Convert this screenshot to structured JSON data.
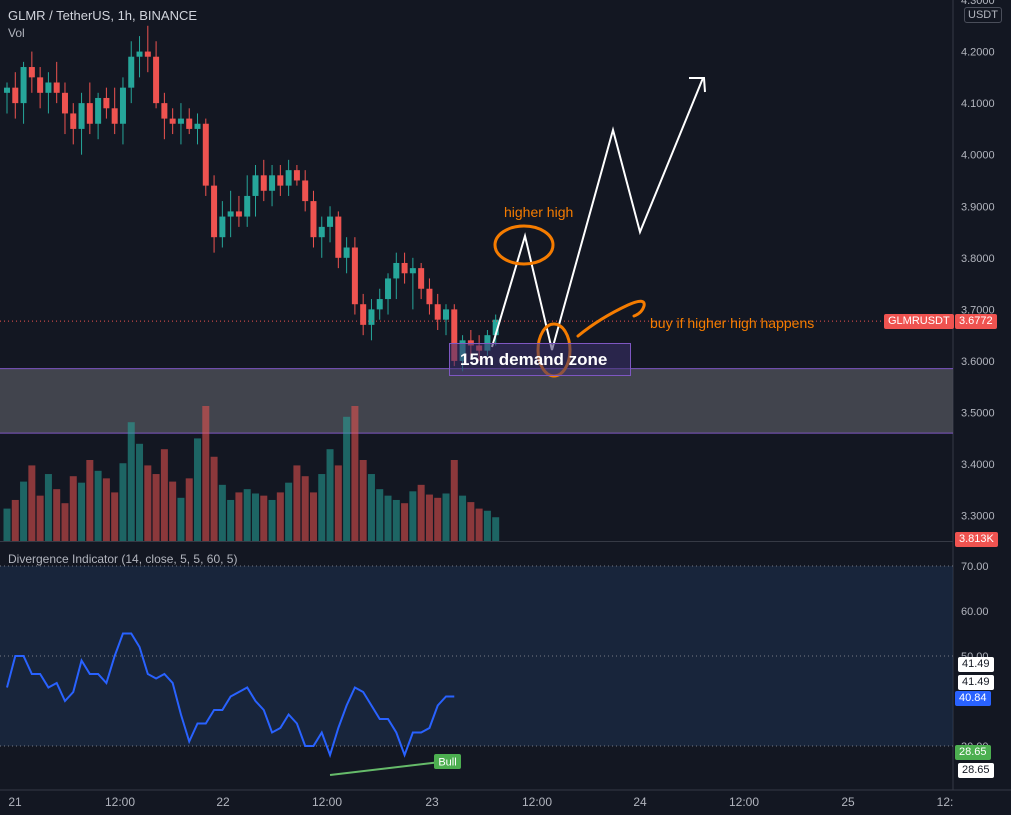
{
  "header": {
    "title": "GLMR / TetherUS, 1h, BINANCE",
    "volume_label": "Vol",
    "indicator_title": "Divergence Indicator (14, close, 5, 5, 60, 5)",
    "currency_unit": "USDT"
  },
  "annotations": {
    "higher_high": "higher high",
    "buy_note": "buy if higher high happens",
    "demand_zone": "15m demand zone",
    "bull_label": "Bull"
  },
  "price_tags": {
    "symbol": "GLMRUSDT",
    "last_price": "3.6772",
    "volume_value": "3.813K"
  },
  "indicator_tags": {
    "upper_a": "41.49",
    "upper_b": "41.49",
    "current": "40.84",
    "lower_a": "28.65",
    "lower_b": "28.65"
  },
  "colors": {
    "background": "#131722",
    "bull_candle": "#26a69a",
    "bear_candle": "#ef5350",
    "indicator_line": "#2962ff",
    "annotation_orange": "#f57c00",
    "zone_fill": "#4a4c55",
    "zone_border": "#7e57c2",
    "divergence_line": "#66bb6a"
  },
  "chart_data": [
    {
      "type": "candlestick",
      "title": "GLMR / TetherUS, 1h, BINANCE",
      "x_ticks": [
        "21",
        "12:00",
        "22",
        "12:00",
        "23",
        "12:00",
        "24",
        "12:00",
        "25",
        "12:"
      ],
      "y_ticks": [
        4.3,
        4.2,
        4.1,
        4.0,
        3.9,
        3.8,
        3.7,
        3.6,
        3.5,
        3.4,
        3.3
      ],
      "ylim": [
        3.25,
        4.3
      ],
      "grid": false,
      "last_price": 3.6772,
      "demand_zone": [
        3.46,
        3.585
      ],
      "candles": [
        [
          4.12,
          4.14,
          4.08,
          4.13
        ],
        [
          4.13,
          4.16,
          4.07,
          4.1
        ],
        [
          4.1,
          4.18,
          4.06,
          4.17
        ],
        [
          4.17,
          4.2,
          4.12,
          4.15
        ],
        [
          4.15,
          4.17,
          4.09,
          4.12
        ],
        [
          4.12,
          4.16,
          4.08,
          4.14
        ],
        [
          4.14,
          4.18,
          4.1,
          4.12
        ],
        [
          4.12,
          4.14,
          4.04,
          4.08
        ],
        [
          4.08,
          4.1,
          4.02,
          4.05
        ],
        [
          4.05,
          4.12,
          4.0,
          4.1
        ],
        [
          4.1,
          4.14,
          4.04,
          4.06
        ],
        [
          4.06,
          4.12,
          4.03,
          4.11
        ],
        [
          4.11,
          4.13,
          4.07,
          4.09
        ],
        [
          4.09,
          4.13,
          4.04,
          4.06
        ],
        [
          4.06,
          4.15,
          4.02,
          4.13
        ],
        [
          4.13,
          4.22,
          4.1,
          4.19
        ],
        [
          4.19,
          4.23,
          4.15,
          4.2
        ],
        [
          4.2,
          4.25,
          4.16,
          4.19
        ],
        [
          4.19,
          4.22,
          4.09,
          4.1
        ],
        [
          4.1,
          4.12,
          4.03,
          4.07
        ],
        [
          4.07,
          4.09,
          4.04,
          4.06
        ],
        [
          4.06,
          4.1,
          4.02,
          4.07
        ],
        [
          4.07,
          4.09,
          4.04,
          4.05
        ],
        [
          4.05,
          4.08,
          4.02,
          4.06
        ],
        [
          4.06,
          4.07,
          3.92,
          3.94
        ],
        [
          3.94,
          3.96,
          3.81,
          3.84
        ],
        [
          3.84,
          3.91,
          3.82,
          3.88
        ],
        [
          3.88,
          3.93,
          3.84,
          3.89
        ],
        [
          3.89,
          3.92,
          3.86,
          3.88
        ],
        [
          3.88,
          3.96,
          3.86,
          3.92
        ],
        [
          3.92,
          3.98,
          3.88,
          3.96
        ],
        [
          3.96,
          3.99,
          3.91,
          3.93
        ],
        [
          3.93,
          3.98,
          3.9,
          3.96
        ],
        [
          3.96,
          3.98,
          3.92,
          3.94
        ],
        [
          3.94,
          3.99,
          3.92,
          3.97
        ],
        [
          3.97,
          3.98,
          3.94,
          3.95
        ],
        [
          3.95,
          3.97,
          3.89,
          3.91
        ],
        [
          3.91,
          3.93,
          3.82,
          3.84
        ],
        [
          3.84,
          3.88,
          3.8,
          3.86
        ],
        [
          3.86,
          3.9,
          3.83,
          3.88
        ],
        [
          3.88,
          3.89,
          3.78,
          3.8
        ],
        [
          3.8,
          3.84,
          3.77,
          3.82
        ],
        [
          3.82,
          3.84,
          3.69,
          3.71
        ],
        [
          3.71,
          3.73,
          3.65,
          3.67
        ],
        [
          3.67,
          3.72,
          3.64,
          3.7
        ],
        [
          3.7,
          3.74,
          3.68,
          3.72
        ],
        [
          3.72,
          3.77,
          3.69,
          3.76
        ],
        [
          3.76,
          3.81,
          3.72,
          3.79
        ],
        [
          3.79,
          3.81,
          3.75,
          3.77
        ],
        [
          3.77,
          3.8,
          3.7,
          3.78
        ],
        [
          3.78,
          3.79,
          3.72,
          3.74
        ],
        [
          3.74,
          3.76,
          3.69,
          3.71
        ],
        [
          3.71,
          3.73,
          3.66,
          3.68
        ],
        [
          3.68,
          3.71,
          3.65,
          3.7
        ],
        [
          3.7,
          3.71,
          3.59,
          3.6
        ],
        [
          3.6,
          3.65,
          3.58,
          3.64
        ],
        [
          3.64,
          3.66,
          3.61,
          3.63
        ],
        [
          3.63,
          3.65,
          3.6,
          3.62
        ],
        [
          3.62,
          3.66,
          3.61,
          3.65
        ],
        [
          3.65,
          3.69,
          3.63,
          3.68
        ]
      ],
      "volume": [
        30,
        38,
        55,
        70,
        42,
        62,
        48,
        35,
        60,
        54,
        75,
        65,
        58,
        45,
        72,
        110,
        90,
        70,
        62,
        85,
        55,
        40,
        58,
        95,
        125,
        78,
        52,
        38,
        45,
        48,
        44,
        42,
        38,
        45,
        54,
        70,
        60,
        45,
        62,
        85,
        70,
        115,
        125,
        75,
        62,
        48,
        42,
        38,
        35,
        46,
        52,
        43,
        40,
        44,
        75,
        42,
        36,
        30,
        28,
        22
      ]
    },
    {
      "type": "line",
      "title": "Divergence Indicator (14, close, 5, 5, 60, 5)",
      "y_ticks": [
        70.0,
        60.0,
        50.0,
        30.0
      ],
      "ylim": [
        25,
        72
      ],
      "band": [
        30,
        70
      ],
      "series": [
        {
          "values": [
            43,
            50,
            50,
            46,
            46,
            43,
            44,
            40,
            42,
            49,
            46,
            46,
            44,
            50,
            55,
            55,
            52,
            46,
            45,
            46,
            44,
            37,
            31,
            35,
            35,
            38,
            38,
            41,
            42,
            43,
            40,
            38,
            33,
            34,
            37,
            35,
            30,
            30,
            33,
            28,
            34,
            39,
            43,
            42,
            39,
            36,
            36,
            33,
            28,
            33,
            33,
            34,
            39,
            41,
            41
          ]
        }
      ],
      "divergence": {
        "type": "bullish",
        "label": "Bull"
      }
    }
  ]
}
